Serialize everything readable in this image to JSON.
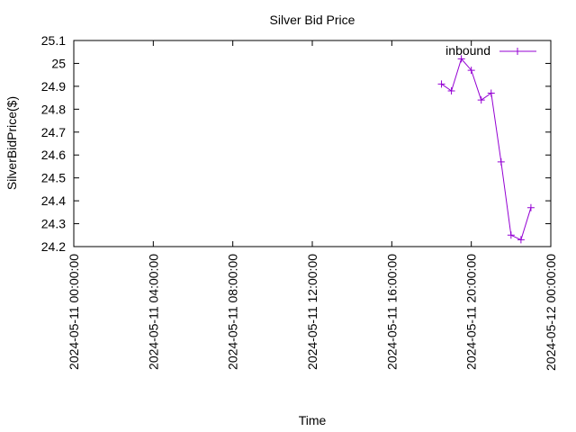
{
  "chart_data": {
    "type": "line",
    "title": "Silver Bid Price",
    "xlabel": "Time",
    "ylabel": "SilverBidPrice($)",
    "xlim": [
      "2024-05-11 00:00:00",
      "2024-05-12 00:00:00"
    ],
    "ylim": [
      24.2,
      25.1
    ],
    "y_ticks": [
      "24.2",
      "24.3",
      "24.4",
      "24.5",
      "24.6",
      "24.7",
      "24.8",
      "24.9",
      "25",
      "25.1"
    ],
    "x_ticks": [
      "2024-05-11 00:00:00",
      "2024-05-11 04:00:00",
      "2024-05-11 08:00:00",
      "2024-05-11 12:00:00",
      "2024-05-11 16:00:00",
      "2024-05-11 20:00:00",
      "2024-05-12 00:00:00"
    ],
    "grid": false,
    "legend_position": "top-right",
    "series": [
      {
        "name": "inbound",
        "color": "#9400d3",
        "marker": "plus",
        "points": [
          {
            "x": "2024-05-11 18:30:00",
            "y": 24.91
          },
          {
            "x": "2024-05-11 19:00:00",
            "y": 24.88
          },
          {
            "x": "2024-05-11 19:30:00",
            "y": 25.02
          },
          {
            "x": "2024-05-11 20:00:00",
            "y": 24.97
          },
          {
            "x": "2024-05-11 20:30:00",
            "y": 24.84
          },
          {
            "x": "2024-05-11 21:00:00",
            "y": 24.87
          },
          {
            "x": "2024-05-11 21:30:00",
            "y": 24.57
          },
          {
            "x": "2024-05-11 22:00:00",
            "y": 24.25
          },
          {
            "x": "2024-05-11 22:30:00",
            "y": 24.23
          },
          {
            "x": "2024-05-11 23:00:00",
            "y": 24.37
          }
        ]
      }
    ]
  }
}
